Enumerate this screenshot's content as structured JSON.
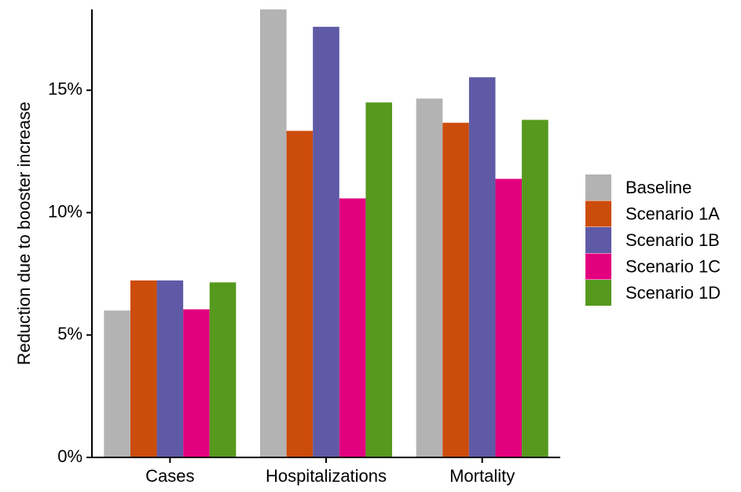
{
  "chart_data": {
    "type": "bar",
    "y_label": "Reduction due to booster increase",
    "categories": [
      "Cases",
      "Hospitalizations",
      "Mortality"
    ],
    "series": [
      {
        "name": "Baseline",
        "color": "#b3b3b3",
        "values": [
          6.0,
          18.3,
          14.66
        ]
      },
      {
        "name": "Scenario 1A",
        "color": "#cc4c0c",
        "values": [
          7.23,
          13.34,
          13.67
        ]
      },
      {
        "name": "Scenario 1B",
        "color": "#5f5aa6",
        "values": [
          7.23,
          17.59,
          15.53
        ]
      },
      {
        "name": "Scenario 1C",
        "color": "#e2007f",
        "values": [
          6.05,
          10.58,
          11.38
        ]
      },
      {
        "name": "Scenario 1D",
        "color": "#56991e",
        "values": [
          7.15,
          14.5,
          13.79
        ]
      }
    ],
    "ylim": [
      0,
      18.3
    ],
    "yticks": [
      {
        "value": 0,
        "label": "0%"
      },
      {
        "value": 5,
        "label": "5%"
      },
      {
        "value": 10,
        "label": "10%"
      },
      {
        "value": 15,
        "label": "15%"
      }
    ],
    "legend": "right"
  }
}
